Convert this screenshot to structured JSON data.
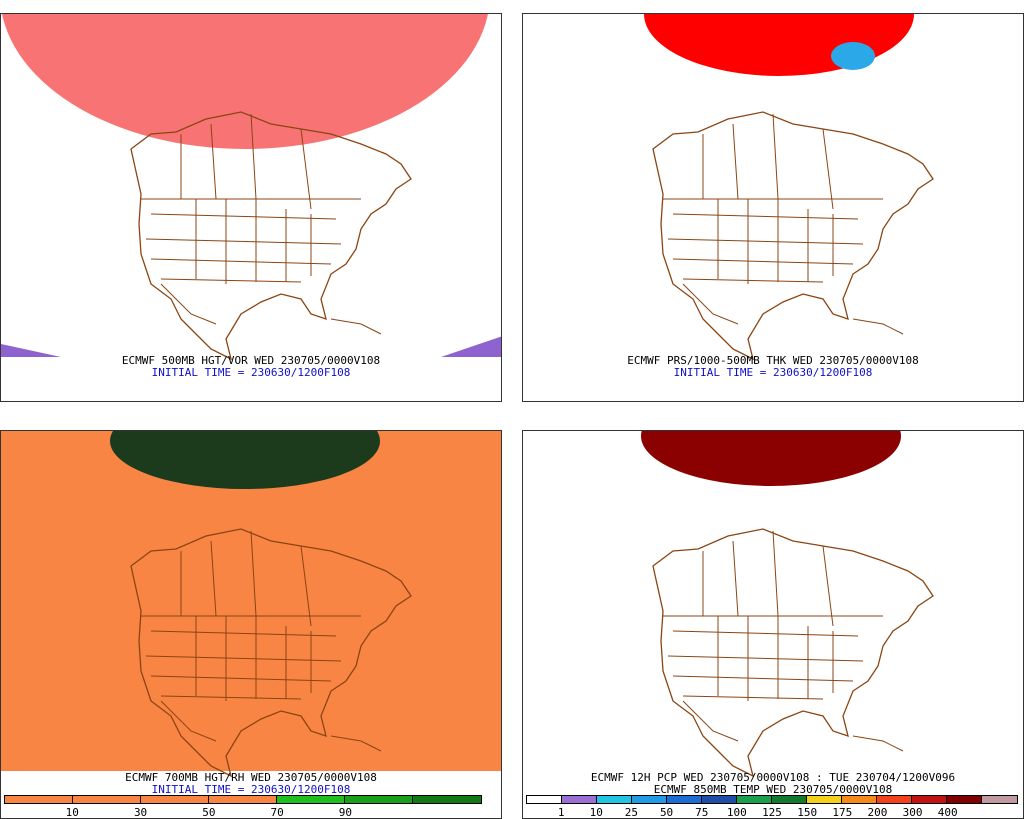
{
  "panels": [
    {
      "id": "p1",
      "title": "ECMWF 500MB HGT/VOR WED 230705/0000V108",
      "subtitle": "INITIAL TIME = 230630/1200F108",
      "fill_color": "#f87474",
      "accent_color": "#8e62cf"
    },
    {
      "id": "p2",
      "title": "ECMWF PRS/1000-500MB THK WED 230705/0000V108",
      "subtitle": "INITIAL TIME = 230630/1200F108",
      "fill_color": "#ff0000",
      "accent_color": "#2aa8e8"
    },
    {
      "id": "p3",
      "title": "ECMWF 700MB HGT/RH WED 230705/0000V108",
      "subtitle": "INITIAL TIME = 230630/1200F108",
      "fill_color": "#f98544",
      "accent_color": "#1c3a1c"
    },
    {
      "id": "p4",
      "title": "ECMWF 12H PCP WED 230705/0000V108 : TUE 230704/1200V096",
      "subtitle": "ECMWF 850MB TEMP WED 230705/0000V108",
      "fill_color": "#8b0000",
      "accent_color": "#3030c0"
    }
  ],
  "colorbar_rh": {
    "labels": [
      "10",
      "30",
      "50",
      "70",
      "90"
    ],
    "colors": [
      "#f98544",
      "#f98544",
      "#f98544",
      "#f98544",
      "#1fbf1f",
      "#18a018",
      "#127a12"
    ]
  },
  "colorbar_pcp": {
    "labels": [
      "1",
      "10",
      "25",
      "50",
      "75",
      "100",
      "125",
      "150",
      "175",
      "200",
      "300",
      "400"
    ],
    "colors": [
      "#ffffff",
      "#9a6ed4",
      "#22c4e4",
      "#229ce4",
      "#1a6ed4",
      "#1e4ea8",
      "#19a14e",
      "#127a2e",
      "#f5d21a",
      "#f58a1a",
      "#f5421a",
      "#c21212",
      "#800000",
      "#c09aa0"
    ]
  },
  "map_color": "#8b4513"
}
